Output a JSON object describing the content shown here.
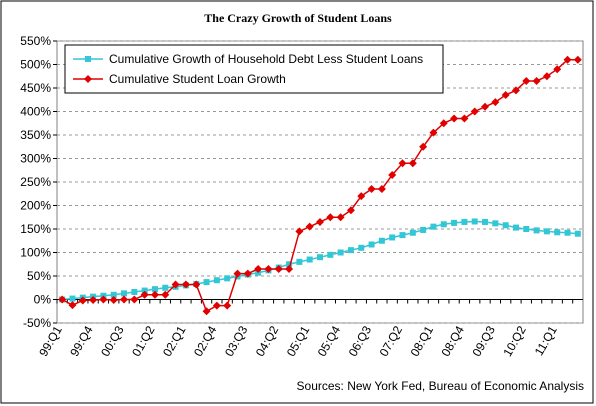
{
  "chart_data": {
    "type": "line",
    "title": "The Crazy Growth of Student Loans",
    "annotation": "Sources: New York Fed, Bureau of Economic Analysis",
    "categories": [
      "99:Q1",
      null,
      null,
      "99:Q4",
      null,
      null,
      "00:Q3",
      null,
      null,
      "01:Q2",
      null,
      null,
      "02:Q1",
      null,
      null,
      "02:Q4",
      null,
      null,
      "03:Q3",
      null,
      null,
      "04:Q2",
      null,
      null,
      "05:Q1",
      null,
      null,
      "05:Q4",
      null,
      null,
      "06:Q3",
      null,
      null,
      "07:Q2",
      null,
      null,
      "08:Q1",
      null,
      null,
      "08:Q4",
      null,
      null,
      "09:Q3",
      null,
      null,
      "10:Q2",
      null,
      null,
      "11:Q1",
      null,
      null
    ],
    "series": [
      {
        "name": "Cumulative Growth of Household Debt Less Student Loans",
        "color": "#33c6d6",
        "marker": "square",
        "values": [
          0,
          2,
          4,
          6,
          8,
          10,
          13,
          16,
          19,
          22,
          25,
          27,
          30,
          33,
          37,
          41,
          45,
          49,
          53,
          57,
          62,
          68,
          75,
          80,
          85,
          90,
          95,
          100,
          105,
          110,
          117,
          125,
          132,
          137,
          142,
          148,
          155,
          160,
          163,
          165,
          166,
          165,
          162,
          158,
          153,
          150,
          147,
          145,
          143,
          142,
          140
        ]
      },
      {
        "name": "Cumulative Student Loan Growth",
        "color": "#e00000",
        "marker": "diamond",
        "values": [
          0,
          -12,
          -2,
          -1,
          0,
          -1,
          0,
          0,
          10,
          10,
          10,
          32,
          32,
          32,
          -25,
          -13,
          -13,
          55,
          55,
          65,
          65,
          65,
          65,
          145,
          155,
          165,
          175,
          175,
          190,
          220,
          235,
          235,
          265,
          290,
          290,
          325,
          355,
          375,
          385,
          385,
          400,
          410,
          420,
          435,
          445,
          465,
          465,
          475,
          490,
          510,
          510
        ]
      }
    ],
    "ylim": [
      -50,
      550
    ],
    "yticks": [
      {
        "value": -50,
        "label": "-50%"
      },
      {
        "value": 0,
        "label": "0%"
      },
      {
        "value": 50,
        "label": "50%"
      },
      {
        "value": 100,
        "label": "100%"
      },
      {
        "value": 150,
        "label": "150%"
      },
      {
        "value": 200,
        "label": "200%"
      },
      {
        "value": 250,
        "label": "250%"
      },
      {
        "value": 300,
        "label": "300%"
      },
      {
        "value": 350,
        "label": "350%"
      },
      {
        "value": 400,
        "label": "400%"
      },
      {
        "value": 450,
        "label": "450%"
      },
      {
        "value": 500,
        "label": "500%"
      },
      {
        "value": 550,
        "label": "550%"
      }
    ],
    "grid": true,
    "legend": "top-left"
  }
}
